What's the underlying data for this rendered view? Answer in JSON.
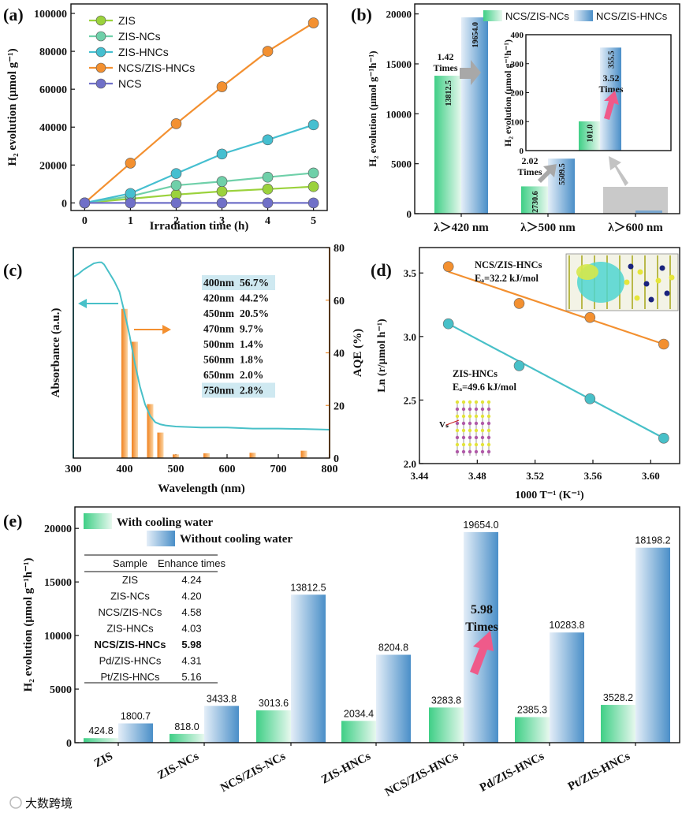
{
  "panels": {
    "a": {
      "label": "(a)",
      "xlabel": "Irradiation time (h)",
      "ylabel": "H₂ evolution (μmol g⁻¹)"
    },
    "b": {
      "label": "(b)",
      "ylabel": "H₂ evolution (μmol g⁻¹h⁻¹)",
      "inset_ylabel": "H₂ evolution (μmol g⁻¹h⁻¹)"
    },
    "c": {
      "label": "(c)",
      "xlabel": "Wavelength (nm)",
      "ylabel_left": "Absorbance (a.u.)",
      "ylabel_right": "AQE (%)"
    },
    "d": {
      "label": "(d)",
      "xlabel": "1000 T⁻¹ (K⁻¹)",
      "ylabel": "Ln (r/μmol h⁻¹)",
      "vs_label": "Vₛ"
    },
    "e": {
      "label": "(e)",
      "ylabel": "H₂ evolution (μmol g⁻¹h⁻¹)"
    }
  },
  "watermark": "大数跨境",
  "chart_data": [
    {
      "id": "a",
      "type": "line",
      "x": [
        0,
        1,
        2,
        3,
        4,
        5
      ],
      "xlim": [
        -0.3,
        5.3
      ],
      "ylim": [
        -4000,
        105000
      ],
      "xticks": [
        0,
        1,
        2,
        3,
        4,
        5
      ],
      "yticks": [
        0,
        20000,
        40000,
        60000,
        80000,
        100000
      ],
      "legend_position": "top-left",
      "series": [
        {
          "name": "ZIS",
          "color": "#9bd23c",
          "values": [
            0,
            2200,
            4400,
            6100,
            7300,
            8600
          ]
        },
        {
          "name": "ZIS-NCs",
          "color": "#6fd0a9",
          "values": [
            0,
            3500,
            9300,
            11300,
            13600,
            15800
          ]
        },
        {
          "name": "ZIS-HNCs",
          "color": "#45bfd0",
          "values": [
            0,
            5000,
            15500,
            25800,
            33300,
            41200
          ]
        },
        {
          "name": "NCS/ZIS-HNCs",
          "color": "#f39030",
          "values": [
            0,
            21000,
            41800,
            61300,
            80000,
            95000
          ]
        },
        {
          "name": "NCS",
          "color": "#7070c8",
          "values": [
            0,
            0,
            0,
            0,
            0,
            0
          ]
        }
      ]
    },
    {
      "id": "b",
      "type": "bar",
      "categories": [
        "λ＞420 nm",
        "λ＞500 nm",
        "λ＞600 nm"
      ],
      "ylim": [
        0,
        21000
      ],
      "yticks": [
        0,
        5000,
        10000,
        15000,
        20000
      ],
      "legend_position": "top",
      "series": [
        {
          "name": "NCS/ZIS-NCs",
          "color": "#5ed39a",
          "values": [
            13812.5,
            2730.6,
            101.0
          ]
        },
        {
          "name": "NCS/ZIS-HNCs",
          "color": "#4d96cc",
          "values": [
            19654.0,
            5509.5,
            355.5
          ]
        }
      ],
      "value_labels": [
        [
          "13812.5",
          "19654.0"
        ],
        [
          "2730.6",
          "5509.5"
        ]
      ],
      "annotations": [
        {
          "text": "1.42\nTimes"
        },
        {
          "text": "2.02\nTimes"
        }
      ],
      "inset": {
        "ylim": [
          0,
          400
        ],
        "yticks": [
          0,
          100,
          200,
          300,
          400
        ],
        "values": [
          101.0,
          355.5
        ],
        "value_labels": [
          "101.0",
          "355.5"
        ],
        "annotation": "3.52\nTimes"
      }
    },
    {
      "id": "c",
      "type": "bar",
      "xlim": [
        300,
        800
      ],
      "xticks": [
        300,
        400,
        500,
        600,
        700,
        800
      ],
      "ylim_right": [
        0,
        80
      ],
      "yticks_right": [
        0,
        20,
        40,
        60,
        80
      ],
      "absorbance_curve": {
        "x": [
          300,
          310,
          320,
          330,
          340,
          350,
          355,
          360,
          370,
          380,
          390,
          400,
          410,
          420,
          430,
          440,
          450,
          460,
          470,
          480,
          500,
          550,
          600,
          650,
          700,
          750,
          800
        ],
        "y": [
          0.86,
          0.875,
          0.895,
          0.91,
          0.925,
          0.93,
          0.93,
          0.92,
          0.88,
          0.84,
          0.79,
          0.69,
          0.58,
          0.45,
          0.34,
          0.255,
          0.2,
          0.17,
          0.16,
          0.155,
          0.15,
          0.145,
          0.145,
          0.14,
          0.14,
          0.138,
          0.135
        ]
      },
      "aqe_bars": {
        "wavelength": [
          400,
          420,
          450,
          470,
          500,
          560,
          650,
          750
        ],
        "aqe": [
          56.7,
          44.2,
          20.5,
          9.7,
          1.4,
          1.8,
          2.0,
          2.8
        ]
      },
      "table_rows": [
        {
          "wl": "400nm",
          "val": "56.7%",
          "hl": true
        },
        {
          "wl": "420nm",
          "val": "44.2%",
          "hl": false
        },
        {
          "wl": "450nm",
          "val": "20.5%",
          "hl": false
        },
        {
          "wl": "470nm",
          "val": "9.7%",
          "hl": false
        },
        {
          "wl": "500nm",
          "val": "1.4%",
          "hl": false
        },
        {
          "wl": "560nm",
          "val": "1.8%",
          "hl": false
        },
        {
          "wl": "650nm",
          "val": "2.0%",
          "hl": false
        },
        {
          "wl": "750nm",
          "val": "2.8%",
          "hl": true
        }
      ],
      "colors": {
        "absorbance": "#48c0c8",
        "aqe": "#f39030"
      }
    },
    {
      "id": "d",
      "type": "scatter",
      "xlim": [
        3.44,
        3.62
      ],
      "ylim": [
        2.0,
        3.7
      ],
      "xticks": [
        3.44,
        3.48,
        3.52,
        3.56,
        3.6
      ],
      "yticks": [
        2.0,
        2.5,
        3.0,
        3.5
      ],
      "series": [
        {
          "name": "NCS/ZIS-HNCs",
          "subtitle": "Eₐ=32.2 kJ/mol",
          "color": "#f39030",
          "x": [
            3.46,
            3.509,
            3.558,
            3.609
          ],
          "y": [
            3.55,
            3.26,
            3.15,
            2.94
          ],
          "fit": [
            [
              3.46,
              3.51
            ],
            [
              3.609,
              2.94
            ]
          ]
        },
        {
          "name": "ZIS-HNCs",
          "subtitle": "Eₐ=49.6 kJ/mol",
          "color": "#48c0c8",
          "x": [
            3.46,
            3.509,
            3.558,
            3.609
          ],
          "y": [
            3.1,
            2.77,
            2.51,
            2.2
          ],
          "fit": [
            [
              3.46,
              3.1
            ],
            [
              3.609,
              2.2
            ]
          ]
        }
      ]
    },
    {
      "id": "e",
      "type": "bar",
      "categories": [
        "ZIS",
        "ZIS-NCs",
        "NCS/ZIS-NCs",
        "ZIS-HNCs",
        "NCS/ZIS-HNCs",
        "Pd/ZIS-HNCs",
        "Pt/ZIS-HNCs"
      ],
      "ylim": [
        0,
        22000
      ],
      "yticks": [
        0,
        5000,
        10000,
        15000,
        20000
      ],
      "legend_position": "top-left",
      "series": [
        {
          "name": "With cooling water",
          "color": "#5ed39a",
          "values": [
            424.8,
            818.0,
            3013.6,
            2034.4,
            3283.8,
            2385.3,
            3528.2
          ]
        },
        {
          "name": "Without cooling water",
          "color": "#4d96cc",
          "values": [
            1800.7,
            3433.8,
            13812.5,
            8204.8,
            19654.0,
            10283.8,
            18198.2
          ]
        }
      ],
      "value_labels": {
        "with": [
          "424.8",
          "818.0",
          "3013.6",
          "2034.4",
          "3283.8",
          "2385.3",
          "3528.2"
        ],
        "without": [
          "1800.7",
          "3433.8",
          "13812.5",
          "8204.8",
          "19654.0",
          "10283.8",
          "18198.2"
        ]
      },
      "annotation": "5.98\nTimes",
      "table": {
        "headers": [
          "Sample",
          "Enhance times"
        ],
        "rows": [
          [
            "ZIS",
            "4.24"
          ],
          [
            "ZIS-NCs",
            "4.20"
          ],
          [
            "NCS/ZIS-NCs",
            "4.58"
          ],
          [
            "ZIS-HNCs",
            "4.03"
          ],
          [
            "NCS/ZIS-HNCs",
            "5.98"
          ],
          [
            "Pd/ZIS-HNCs",
            "4.31"
          ],
          [
            "Pt/ZIS-HNCs",
            "5.16"
          ]
        ],
        "highlight_row": 4
      }
    }
  ]
}
